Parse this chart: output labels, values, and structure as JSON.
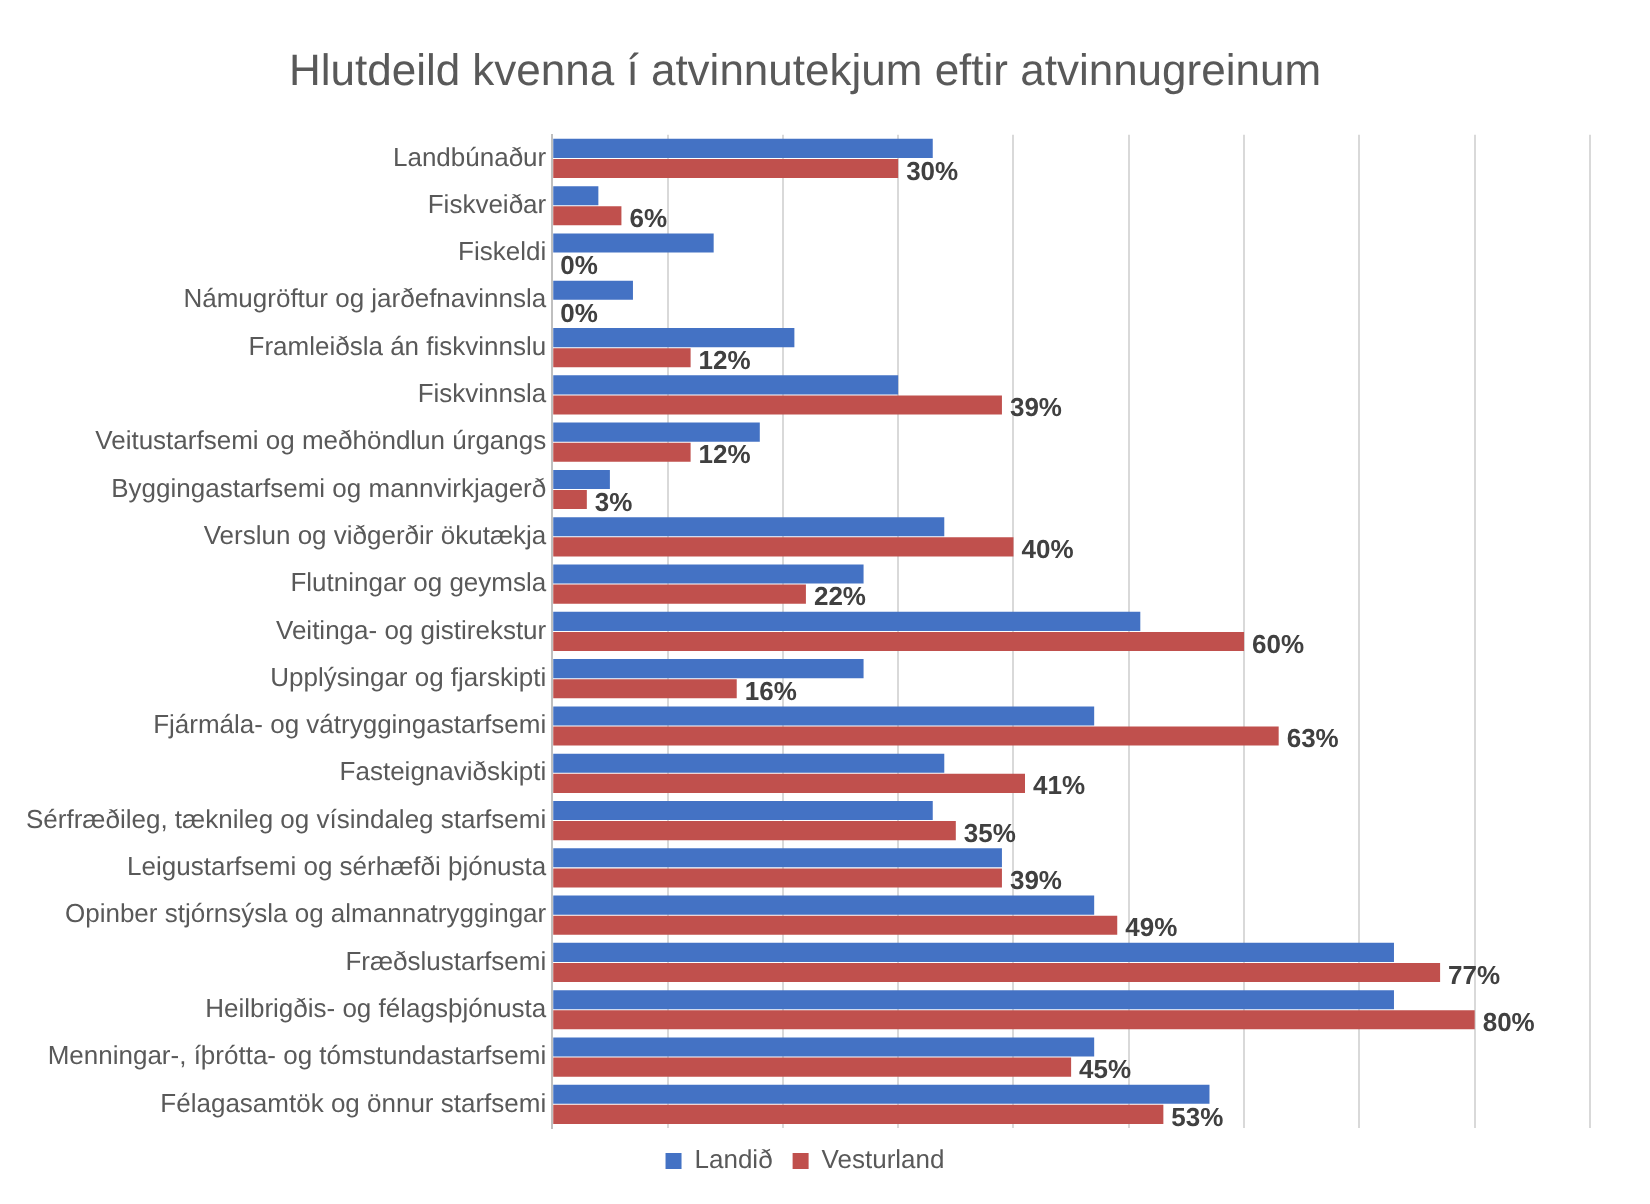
{
  "chart_data": {
    "type": "bar",
    "orientation": "horizontal",
    "title": "Hlutdeild kvenna í atvinnutekjum eftir atvinnugreinum",
    "categories": [
      "Landbúnaður",
      "Fiskveiðar",
      "Fiskeldi",
      "Námugröftur og jarðefnavinnsla",
      "Framleiðsla án fiskvinnslu",
      "Fiskvinnsla",
      "Veitustarfsemi og meðhöndlun úrgangs",
      "Byggingastarfsemi og mannvirkjagerð",
      "Verslun og viðgerðir ökutækja",
      "Flutningar og geymsla",
      "Veitinga- og gistirekstur",
      "Upplýsingar og fjarskipti",
      "Fjármála- og vátryggingastarfsemi",
      "Fasteignaviðskipti",
      "Sérfræðileg, tæknileg og vísindaleg starfsemi",
      "Leigustarfsemi og sérhæfði þjónusta",
      "Opinber stjórnsýsla og almannatryggingar",
      "Fræðslustarfsemi",
      "Heilbrigðis- og félagsþjónusta",
      "Menningar-, íþrótta- og tómstundastarfsemi",
      "Félagasamtök og önnur starfsemi"
    ],
    "series": [
      {
        "name": "Landið",
        "color": "#4472c4",
        "values": [
          33,
          4,
          14,
          7,
          21,
          30,
          18,
          5,
          34,
          27,
          51,
          27,
          47,
          34,
          33,
          39,
          47,
          73,
          73,
          47,
          57
        ]
      },
      {
        "name": "Vesturland",
        "color": "#c0504d",
        "values": [
          30,
          6,
          0,
          0,
          12,
          39,
          12,
          3,
          40,
          22,
          60,
          16,
          63,
          41,
          35,
          39,
          49,
          77,
          80,
          45,
          53
        ],
        "value_labels": [
          "30%",
          "6%",
          "0%",
          "0%",
          "12%",
          "39%",
          "12%",
          "3%",
          "40%",
          "22%",
          "60%",
          "16%",
          "63%",
          "41%",
          "35%",
          "39%",
          "49%",
          "77%",
          "80%",
          "45%",
          "53%"
        ]
      }
    ],
    "xlim": [
      0,
      90
    ],
    "xticks": [
      {
        "value": 0,
        "label": null
      },
      {
        "value": 10,
        "label": null
      },
      {
        "value": 20,
        "label": null
      },
      {
        "value": 30,
        "label": null
      },
      {
        "value": 40,
        "label": null
      },
      {
        "value": 50,
        "label": null
      },
      {
        "value": 60,
        "label": null
      },
      {
        "value": 70,
        "label": null
      },
      {
        "value": 80,
        "label": null
      },
      {
        "value": 90,
        "label": null
      }
    ],
    "tick_labels": "y",
    "grid": "x",
    "legend": "bottom"
  }
}
